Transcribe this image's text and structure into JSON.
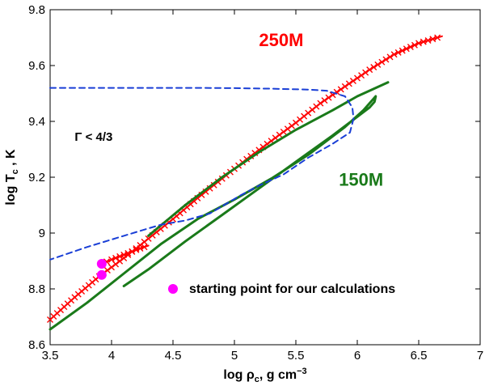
{
  "chart_data": {
    "type": "line",
    "title": "",
    "xlabel": "log ρ",
    "xlabel_sub": "c",
    "xlabel_unit": ", g cm",
    "xlabel_sup": "−3",
    "ylabel": "log T",
    "ylabel_sub": "c",
    "ylabel_unit": " , K",
    "xlim": [
      3.5,
      7
    ],
    "ylim": [
      8.6,
      9.8
    ],
    "xticks": [
      3.5,
      4,
      4.5,
      5,
      5.5,
      6,
      6.5,
      7
    ],
    "xtick_labels": [
      "3.5",
      "4",
      "4.5",
      "5",
      "5.5",
      "6",
      "6.5",
      "7"
    ],
    "yticks": [
      8.6,
      8.8,
      9,
      9.2,
      9.4,
      9.6,
      9.8
    ],
    "ytick_labels": [
      "8.6",
      "8.8",
      "9",
      "9.2",
      "9.4",
      "9.6",
      "9.8"
    ],
    "grid": false,
    "colors": {
      "red": "#ff0000",
      "green": "#1a7a1a",
      "blue": "#1a3fd6",
      "magenta": "#ff00ff"
    },
    "series": [
      {
        "name": "250M",
        "style": "line-cross",
        "color": "#ff0000",
        "x": [
          3.5,
          3.7,
          3.9,
          4.1,
          4.3,
          4.5,
          4.7,
          4.9,
          5.1,
          5.3,
          5.5,
          5.7,
          5.9,
          6.1,
          6.3,
          6.5,
          6.69
        ],
        "y": [
          8.69,
          8.77,
          8.845,
          8.91,
          8.98,
          9.05,
          9.125,
          9.195,
          9.265,
          9.33,
          9.395,
          9.465,
          9.525,
          9.585,
          9.64,
          9.68,
          9.705
        ]
      },
      {
        "name": "250M-starting-branch",
        "style": "line-cross",
        "color": "#ff0000",
        "x": [
          3.92,
          4.0,
          4.1,
          4.2,
          4.3
        ],
        "y": [
          8.89,
          8.905,
          8.922,
          8.94,
          8.955
        ]
      },
      {
        "name": "150M",
        "style": "solid",
        "color": "#1a7a1a",
        "x": [
          3.5,
          3.8,
          4.1,
          4.4,
          4.7,
          5.0,
          5.3,
          5.6,
          5.9,
          6.05,
          6.15,
          6.14,
          6.1,
          5.8,
          5.5,
          5.2,
          4.9,
          4.6,
          4.3,
          4.1
        ],
        "y": [
          8.655,
          8.75,
          8.855,
          8.96,
          9.05,
          9.12,
          9.195,
          9.28,
          9.38,
          9.44,
          9.49,
          9.47,
          9.45,
          9.35,
          9.255,
          9.16,
          9.065,
          8.97,
          8.87,
          8.81
        ]
      },
      {
        "name": "150M-upper-branch",
        "style": "solid",
        "color": "#1a7a1a",
        "x": [
          4.3,
          4.6,
          4.9,
          5.2,
          5.5,
          5.8,
          6.0,
          6.25
        ],
        "y": [
          8.99,
          9.1,
          9.2,
          9.29,
          9.37,
          9.44,
          9.49,
          9.54
        ]
      },
      {
        "name": "Γ = 4/3 boundary",
        "style": "dashed",
        "color": "#1a3fd6",
        "x": [
          3.5,
          3.8,
          4.1,
          4.4,
          4.7,
          5.0,
          5.3,
          5.6,
          5.75,
          5.9,
          5.96,
          5.97,
          5.94,
          5.8,
          5.6,
          5.4,
          5.2,
          5.05,
          4.8,
          4.6,
          4.4,
          4.1,
          3.8,
          3.5
        ],
        "y": [
          9.52,
          9.52,
          9.52,
          9.52,
          9.52,
          9.519,
          9.517,
          9.514,
          9.51,
          9.49,
          9.45,
          9.41,
          9.36,
          9.32,
          9.27,
          9.21,
          9.17,
          9.135,
          9.07,
          9.045,
          9.03,
          8.99,
          8.95,
          8.905
        ]
      }
    ],
    "points": [
      {
        "name": "starting-point-1",
        "x": 3.92,
        "y": 8.89,
        "color": "#ff00ff"
      },
      {
        "name": "starting-point-2",
        "x": 3.92,
        "y": 8.85,
        "color": "#ff00ff"
      }
    ],
    "annotations": [
      {
        "name": "label-250m",
        "text": "250M",
        "x": 5.2,
        "y": 9.67,
        "color": "#ff0000",
        "size": 22
      },
      {
        "name": "label-150m",
        "text": "150M",
        "x": 5.85,
        "y": 9.17,
        "color": "#1a7a1a",
        "size": 22
      },
      {
        "name": "label-gamma",
        "text": "Γ < 4/3",
        "x": 3.7,
        "y": 9.33,
        "color": "#000000",
        "size": 15
      }
    ],
    "legend": {
      "placement": "bottom-center",
      "marker_x": 4.5,
      "marker_y": 8.8,
      "marker_color": "#ff00ff",
      "text": "starting point for our calculations"
    }
  }
}
